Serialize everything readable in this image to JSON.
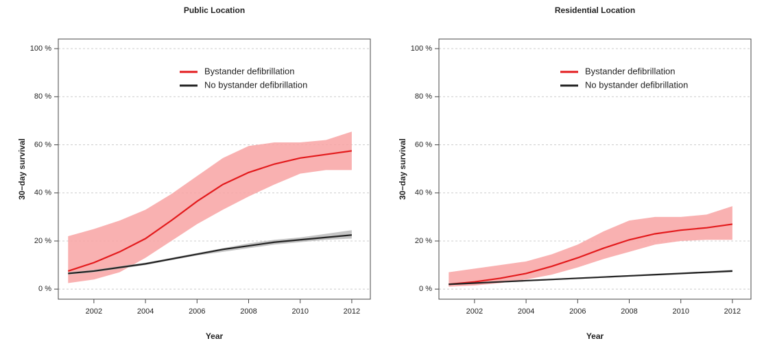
{
  "chart_data": [
    {
      "type": "line",
      "title": "Public Location",
      "x_label": "Year",
      "y_label": "30−day survival",
      "x": [
        2001,
        2002,
        2003,
        2004,
        2005,
        2006,
        2007,
        2008,
        2009,
        2010,
        2011,
        2012
      ],
      "xlim": [
        2000.62,
        2012.72
      ],
      "xticks": [
        2002,
        2004,
        2006,
        2008,
        2010,
        2012
      ],
      "ylim": [
        -4.2,
        104
      ],
      "yticks": [
        {
          "value": 0,
          "label": "0 %"
        },
        {
          "value": 20,
          "label": "20 %"
        },
        {
          "value": 40,
          "label": "40 %"
        },
        {
          "value": 60,
          "label": "60 %"
        },
        {
          "value": 80,
          "label": "80 %"
        },
        {
          "value": 100,
          "label": "100 %"
        }
      ],
      "grid": true,
      "series": [
        {
          "name": "Bystander defibrillation",
          "color": "#e31a1c",
          "band_color": "#f8a3a3",
          "values": [
            7.5,
            11,
            15.5,
            21,
            28.5,
            36.5,
            43.5,
            48.5,
            52,
            54.5,
            56,
            57.5
          ],
          "lower": [
            2.5,
            4,
            7,
            13,
            20,
            27,
            33,
            38.5,
            43.5,
            48,
            49.5,
            49.5
          ],
          "upper": [
            22,
            25,
            28.5,
            33,
            39.5,
            47,
            54.5,
            59.5,
            61,
            61,
            62,
            65.5
          ]
        },
        {
          "name": "No bystander defibrillation",
          "color": "#222222",
          "band_color": "#bbbbbb",
          "values": [
            6.5,
            7.5,
            9,
            10.5,
            12.5,
            14.5,
            16.5,
            18,
            19.5,
            20.5,
            21.5,
            22.5
          ],
          "lower": [
            6,
            7,
            8.5,
            10,
            12,
            14,
            15.5,
            17,
            18.5,
            19.5,
            20.5,
            21
          ],
          "upper": [
            7,
            8,
            9.5,
            11,
            13,
            15,
            17,
            19,
            20.5,
            21.5,
            23,
            24.5
          ]
        }
      ]
    },
    {
      "type": "line",
      "title": "Residential Location",
      "x_label": "Year",
      "y_label": "30−day survival",
      "x": [
        2001,
        2002,
        2003,
        2004,
        2005,
        2006,
        2007,
        2008,
        2009,
        2010,
        2011,
        2012
      ],
      "xlim": [
        2000.62,
        2012.72
      ],
      "xticks": [
        2002,
        2004,
        2006,
        2008,
        2010,
        2012
      ],
      "ylim": [
        -4.2,
        104
      ],
      "yticks": [
        {
          "value": 0,
          "label": "0 %"
        },
        {
          "value": 20,
          "label": "20 %"
        },
        {
          "value": 40,
          "label": "40 %"
        },
        {
          "value": 60,
          "label": "60 %"
        },
        {
          "value": 80,
          "label": "80 %"
        },
        {
          "value": 100,
          "label": "100 %"
        }
      ],
      "grid": true,
      "series": [
        {
          "name": "Bystander defibrillation",
          "color": "#e31a1c",
          "band_color": "#f8a3a3",
          "values": [
            2,
            3,
            4.5,
            6.5,
            9.5,
            13,
            17,
            20.5,
            23,
            24.5,
            25.5,
            27
          ],
          "lower": [
            1,
            1.5,
            2.5,
            4,
            6,
            9,
            12.5,
            15.5,
            18.5,
            20,
            20.5,
            20.5
          ],
          "upper": [
            7,
            8.5,
            10,
            11.5,
            14.5,
            18.5,
            24,
            28.5,
            30,
            30,
            31,
            34.5
          ]
        },
        {
          "name": "No bystander defibrillation",
          "color": "#222222",
          "band_color": "#bbbbbb",
          "values": [
            2,
            2.5,
            3,
            3.5,
            4,
            4.5,
            5,
            5.5,
            6,
            6.5,
            7,
            7.5
          ],
          "lower": [
            1.7,
            2.2,
            2.7,
            3.2,
            3.7,
            4.2,
            4.7,
            5.2,
            5.6,
            6.1,
            6.6,
            7
          ],
          "upper": [
            2.3,
            2.8,
            3.3,
            3.8,
            4.3,
            4.8,
            5.3,
            5.8,
            6.4,
            6.9,
            7.4,
            8
          ]
        }
      ]
    }
  ]
}
